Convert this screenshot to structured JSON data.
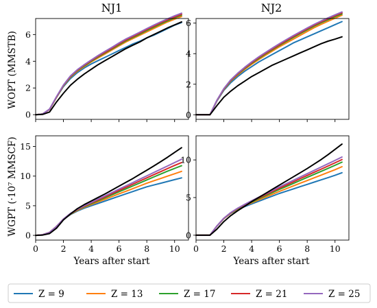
{
  "figure": {
    "column_titles": [
      "NJ1",
      "NJ2"
    ],
    "row_ylabels": [
      "WOPT (MMSTB)",
      "WGPT (·10⁷ MMSCF)"
    ],
    "xlabel": "Years after start"
  },
  "legend": {
    "entries": [
      {
        "label": "Z = 9",
        "color": "#1f77b4"
      },
      {
        "label": "Z = 13",
        "color": "#ff7f0e"
      },
      {
        "label": "Z = 17",
        "color": "#2ca02c"
      },
      {
        "label": "Z = 21",
        "color": "#d62728"
      },
      {
        "label": "Z = 25",
        "color": "#9467bd"
      }
    ]
  },
  "chart_data": [
    {
      "type": "line",
      "panel": "NJ1-WOPT",
      "title": "NJ1",
      "ylabel": "WOPT (MMSTB)",
      "xlabel": "",
      "xlim": [
        0,
        11
      ],
      "ylim": [
        -0.35,
        7.2
      ],
      "xticks": [
        0,
        2,
        4,
        6,
        8,
        10
      ],
      "yticks": [
        0,
        2,
        4,
        6
      ],
      "xtick_labels": false,
      "x": [
        0,
        0.5,
        1,
        1.5,
        2,
        2.5,
        3,
        3.5,
        4,
        4.5,
        5,
        5.5,
        6,
        6.5,
        7,
        7.5,
        8,
        8.5,
        9,
        9.5,
        10,
        10.5
      ],
      "series": [
        {
          "name": "Z = 9",
          "color": "#1f77b4",
          "values": [
            0,
            0.05,
            0.4,
            1.3,
            2.1,
            2.7,
            3.15,
            3.5,
            3.8,
            4.05,
            4.3,
            4.55,
            4.8,
            5.05,
            5.3,
            5.5,
            5.75,
            5.95,
            6.2,
            6.45,
            6.7,
            6.9
          ]
        },
        {
          "name": "Z = 13",
          "color": "#ff7f0e",
          "values": [
            0,
            0.05,
            0.4,
            1.3,
            2.15,
            2.8,
            3.25,
            3.6,
            3.95,
            4.25,
            4.55,
            4.85,
            5.15,
            5.45,
            5.7,
            5.95,
            6.2,
            6.45,
            6.7,
            6.95,
            7.15,
            7.35
          ]
        },
        {
          "name": "Z = 17",
          "color": "#2ca02c",
          "values": [
            0,
            0.05,
            0.4,
            1.3,
            2.17,
            2.83,
            3.3,
            3.65,
            4.0,
            4.33,
            4.63,
            4.93,
            5.23,
            5.53,
            5.78,
            6.03,
            6.3,
            6.55,
            6.8,
            7.03,
            7.25,
            7.45
          ]
        },
        {
          "name": "Z = 21",
          "color": "#d62728",
          "values": [
            0,
            0.05,
            0.4,
            1.32,
            2.2,
            2.86,
            3.33,
            3.7,
            4.05,
            4.38,
            4.68,
            4.98,
            5.3,
            5.6,
            5.85,
            6.1,
            6.38,
            6.62,
            6.88,
            7.1,
            7.32,
            7.52
          ]
        },
        {
          "name": "Z = 25",
          "color": "#9467bd",
          "values": [
            0,
            0.05,
            0.42,
            1.35,
            2.22,
            2.9,
            3.37,
            3.75,
            4.1,
            4.43,
            4.75,
            5.05,
            5.37,
            5.67,
            5.92,
            6.18,
            6.45,
            6.7,
            6.95,
            7.18,
            7.4,
            7.6
          ]
        },
        {
          "color": "#000000",
          "values": [
            0,
            0.02,
            0.2,
            0.95,
            1.6,
            2.2,
            2.65,
            3.05,
            3.4,
            3.75,
            4.05,
            4.35,
            4.65,
            4.95,
            5.2,
            5.45,
            5.75,
            6.0,
            6.25,
            6.5,
            6.72,
            6.95
          ]
        }
      ]
    },
    {
      "type": "line",
      "panel": "NJ2-WOPT",
      "title": "NJ2",
      "ylabel": "",
      "xlabel": "",
      "xlim": [
        0,
        11
      ],
      "ylim": [
        -0.3,
        6.3
      ],
      "xticks": [
        0,
        2,
        4,
        6,
        8,
        10
      ],
      "yticks": [
        0,
        2,
        4,
        6
      ],
      "xtick_labels": false,
      "x": [
        0,
        0.5,
        1,
        1.5,
        2,
        2.5,
        3,
        3.5,
        4,
        4.5,
        5,
        5.5,
        6,
        6.5,
        7,
        7.5,
        8,
        8.5,
        9,
        9.5,
        10,
        10.5
      ],
      "series": [
        {
          "name": "Z = 9",
          "color": "#1f77b4",
          "values": [
            0,
            0,
            0,
            0.9,
            1.6,
            2.1,
            2.5,
            2.85,
            3.15,
            3.45,
            3.7,
            3.95,
            4.2,
            4.45,
            4.7,
            4.9,
            5.1,
            5.3,
            5.5,
            5.7,
            5.9,
            6.1
          ]
        },
        {
          "name": "Z = 13",
          "color": "#ff7f0e",
          "values": [
            0,
            0,
            0,
            0.92,
            1.65,
            2.2,
            2.6,
            2.97,
            3.3,
            3.6,
            3.9,
            4.17,
            4.45,
            4.7,
            4.95,
            5.2,
            5.45,
            5.7,
            5.92,
            6.12,
            6.32,
            6.52
          ]
        },
        {
          "name": "Z = 17",
          "color": "#2ca02c",
          "values": [
            0,
            0,
            0,
            0.93,
            1.67,
            2.23,
            2.65,
            3.03,
            3.37,
            3.68,
            3.98,
            4.26,
            4.54,
            4.8,
            5.06,
            5.31,
            5.56,
            5.8,
            6.02,
            6.22,
            6.42,
            6.6
          ]
        },
        {
          "name": "Z = 21",
          "color": "#d62728",
          "values": [
            0,
            0,
            0,
            0.94,
            1.69,
            2.26,
            2.68,
            3.07,
            3.41,
            3.73,
            4.03,
            4.31,
            4.59,
            4.86,
            5.12,
            5.37,
            5.62,
            5.86,
            6.08,
            6.28,
            6.48,
            6.67
          ]
        },
        {
          "name": "Z = 25",
          "color": "#9467bd",
          "values": [
            0,
            0,
            0,
            0.95,
            1.71,
            2.29,
            2.72,
            3.11,
            3.46,
            3.78,
            4.08,
            4.37,
            4.65,
            4.92,
            5.18,
            5.43,
            5.68,
            5.92,
            6.14,
            6.34,
            6.54,
            6.73
          ]
        },
        {
          "color": "#000000",
          "values": [
            0,
            0,
            0,
            0.6,
            1.15,
            1.55,
            1.9,
            2.2,
            2.5,
            2.75,
            3.0,
            3.25,
            3.45,
            3.65,
            3.85,
            4.05,
            4.25,
            4.45,
            4.65,
            4.82,
            4.95,
            5.1
          ]
        }
      ]
    },
    {
      "type": "line",
      "panel": "NJ1-WGPT",
      "title": "",
      "ylabel": "WGPT (·10⁷ MMSCF)",
      "xlabel": "Years after start",
      "xlim": [
        0,
        11
      ],
      "ylim": [
        -0.8,
        16.8
      ],
      "xticks": [
        0,
        2,
        4,
        6,
        8,
        10
      ],
      "yticks": [
        0,
        5,
        10,
        15
      ],
      "xtick_labels": true,
      "x": [
        0,
        0.5,
        1,
        1.5,
        2,
        2.5,
        3,
        3.5,
        4,
        4.5,
        5,
        5.5,
        6,
        6.5,
        7,
        7.5,
        8,
        8.5,
        9,
        9.5,
        10,
        10.5
      ],
      "series": [
        {
          "name": "Z = 9",
          "color": "#1f77b4",
          "values": [
            0,
            0.1,
            0.5,
            1.5,
            2.7,
            3.5,
            4.1,
            4.6,
            5.0,
            5.4,
            5.8,
            6.2,
            6.6,
            7.0,
            7.4,
            7.8,
            8.2,
            8.5,
            8.8,
            9.1,
            9.4,
            9.7
          ]
        },
        {
          "name": "Z = 13",
          "color": "#ff7f0e",
          "values": [
            0,
            0.1,
            0.5,
            1.5,
            2.7,
            3.55,
            4.2,
            4.75,
            5.2,
            5.65,
            6.1,
            6.55,
            7.0,
            7.45,
            7.9,
            8.35,
            8.8,
            9.2,
            9.6,
            10.0,
            10.4,
            10.8
          ]
        },
        {
          "name": "Z = 17",
          "color": "#2ca02c",
          "values": [
            0,
            0.1,
            0.5,
            1.5,
            2.72,
            3.6,
            4.28,
            4.85,
            5.35,
            5.85,
            6.35,
            6.85,
            7.35,
            7.85,
            8.35,
            8.85,
            9.35,
            9.85,
            10.35,
            10.85,
            11.3,
            11.75
          ]
        },
        {
          "name": "Z = 21",
          "color": "#d62728",
          "values": [
            0,
            0.1,
            0.5,
            1.5,
            2.74,
            3.65,
            4.34,
            4.93,
            5.46,
            5.99,
            6.52,
            7.05,
            7.58,
            8.11,
            8.64,
            9.17,
            9.7,
            10.23,
            10.76,
            11.29,
            11.8,
            12.3
          ]
        },
        {
          "name": "Z = 25",
          "color": "#9467bd",
          "values": [
            0,
            0.1,
            0.5,
            1.5,
            2.76,
            3.7,
            4.4,
            5.0,
            5.56,
            6.12,
            6.68,
            7.24,
            7.8,
            8.36,
            8.92,
            9.48,
            10.04,
            10.6,
            11.16,
            11.72,
            12.28,
            12.84
          ]
        },
        {
          "color": "#000000",
          "values": [
            0,
            0.05,
            0.3,
            1.2,
            2.6,
            3.6,
            4.5,
            5.2,
            5.8,
            6.4,
            7.0,
            7.65,
            8.3,
            8.95,
            9.6,
            10.3,
            11.0,
            11.7,
            12.45,
            13.2,
            14.0,
            14.8
          ]
        }
      ]
    },
    {
      "type": "line",
      "panel": "NJ2-WGPT",
      "title": "",
      "ylabel": "",
      "xlabel": "Years after start",
      "xlim": [
        0,
        11
      ],
      "ylim": [
        -0.65,
        13.2
      ],
      "xticks": [
        0,
        2,
        4,
        6,
        8,
        10
      ],
      "yticks": [
        0,
        5,
        10
      ],
      "xtick_labels": true,
      "x": [
        0,
        0.5,
        1,
        1.5,
        2,
        2.5,
        3,
        3.5,
        4,
        4.5,
        5,
        5.5,
        6,
        6.5,
        7,
        7.5,
        8,
        8.5,
        9,
        9.5,
        10,
        10.5
      ],
      "series": [
        {
          "name": "Z = 9",
          "color": "#1f77b4",
          "values": [
            0,
            0,
            0,
            1.2,
            2.2,
            2.9,
            3.4,
            3.8,
            4.15,
            4.5,
            4.85,
            5.2,
            5.55,
            5.85,
            6.15,
            6.45,
            6.75,
            7.05,
            7.35,
            7.65,
            7.95,
            8.3
          ]
        },
        {
          "name": "Z = 13",
          "color": "#ff7f0e",
          "values": [
            0,
            0,
            0,
            1.2,
            2.2,
            2.92,
            3.45,
            3.9,
            4.3,
            4.68,
            5.06,
            5.44,
            5.82,
            6.18,
            6.54,
            6.9,
            7.26,
            7.62,
            7.98,
            8.34,
            8.7,
            9.1
          ]
        },
        {
          "name": "Z = 17",
          "color": "#2ca02c",
          "values": [
            0,
            0,
            0,
            1.21,
            2.22,
            2.95,
            3.5,
            3.97,
            4.4,
            4.82,
            5.24,
            5.66,
            6.08,
            6.48,
            6.88,
            7.28,
            7.68,
            8.08,
            8.48,
            8.88,
            9.28,
            9.7
          ]
        },
        {
          "name": "Z = 21",
          "color": "#d62728",
          "values": [
            0,
            0,
            0,
            1.22,
            2.24,
            2.98,
            3.55,
            4.04,
            4.49,
            4.93,
            5.37,
            5.81,
            6.25,
            6.67,
            7.09,
            7.51,
            7.93,
            8.35,
            8.77,
            9.19,
            9.61,
            10.05
          ]
        },
        {
          "name": "Z = 25",
          "color": "#9467bd",
          "values": [
            0,
            0,
            0,
            1.23,
            2.26,
            3.01,
            3.59,
            4.1,
            4.57,
            5.03,
            5.49,
            5.95,
            6.41,
            6.85,
            7.29,
            7.73,
            8.17,
            8.61,
            9.05,
            9.49,
            9.93,
            10.38
          ]
        },
        {
          "color": "#000000",
          "values": [
            0,
            0,
            0,
            0.8,
            1.8,
            2.6,
            3.25,
            3.85,
            4.45,
            5.0,
            5.55,
            6.1,
            6.65,
            7.2,
            7.75,
            8.3,
            8.85,
            9.45,
            10.05,
            10.7,
            11.4,
            12.1
          ]
        }
      ]
    }
  ]
}
